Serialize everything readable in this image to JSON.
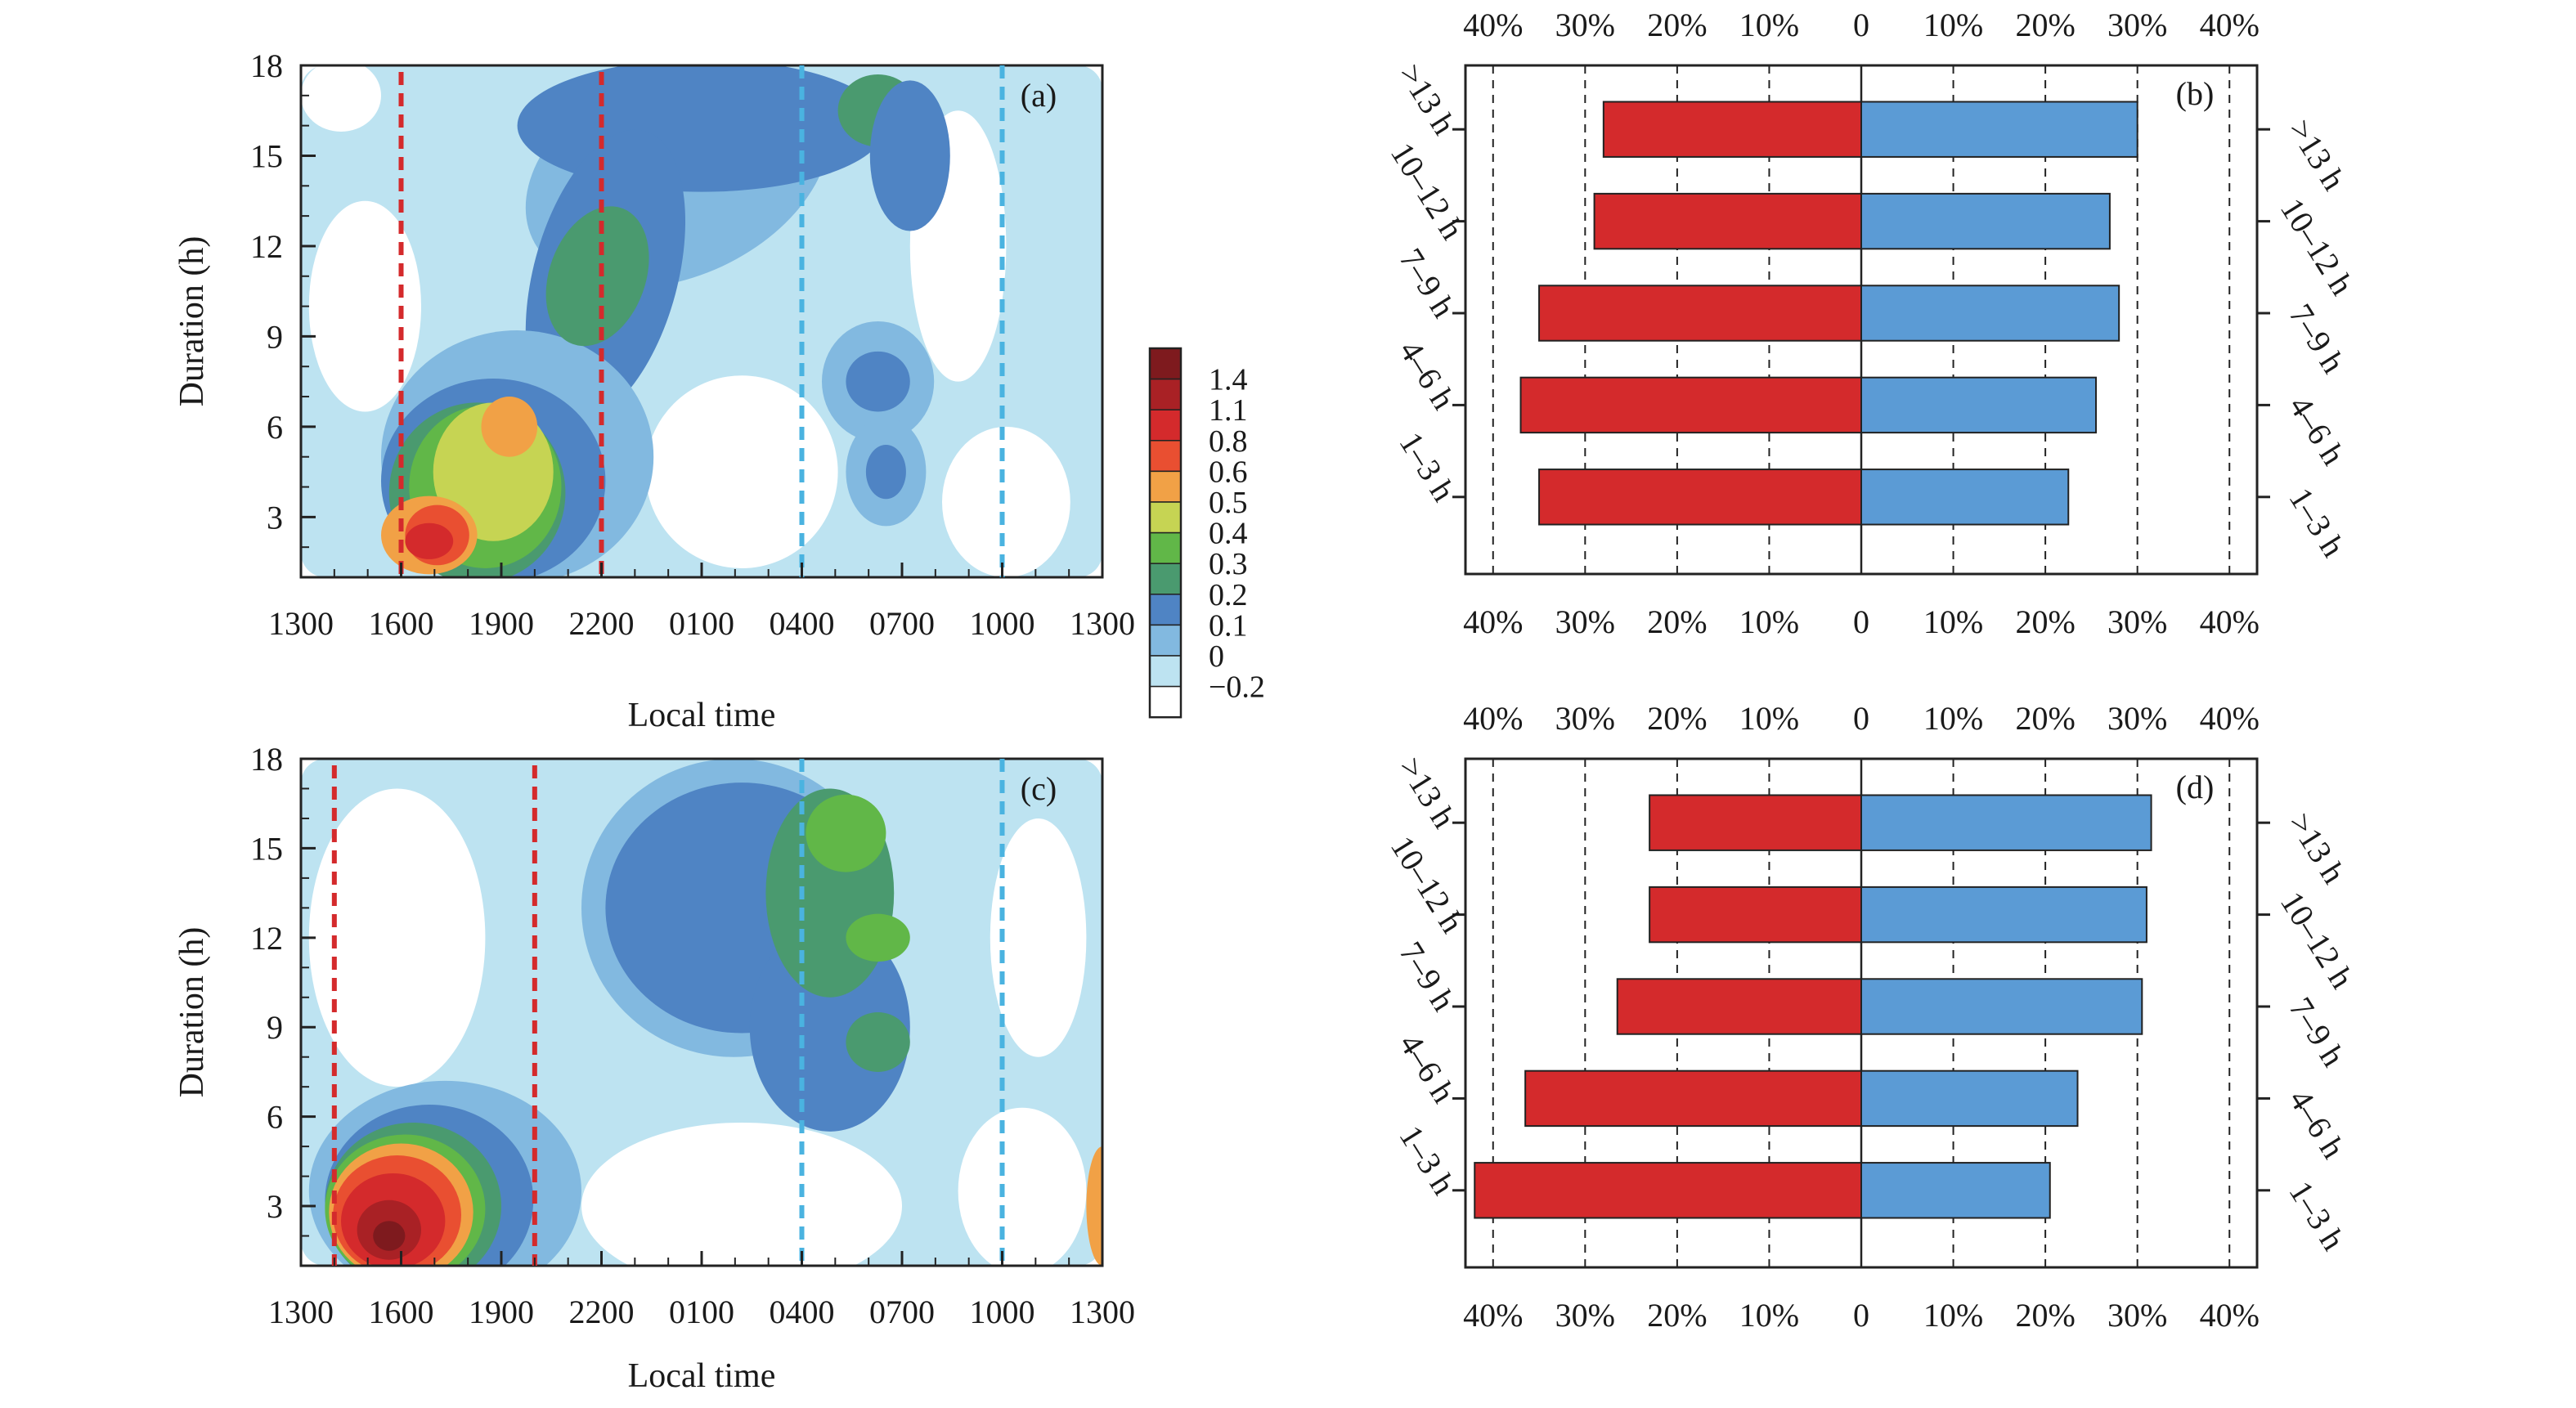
{
  "colorbar": {
    "levels": [
      "1.4",
      "1.1",
      "0.8",
      "0.6",
      "0.5",
      "0.4",
      "0.3",
      "0.2",
      "0.1",
      "0",
      "−0.2"
    ],
    "colors": [
      "#7e1a1e",
      "#a92125",
      "#d42a2c",
      "#e94f31",
      "#f1a146",
      "#c6d453",
      "#61b748",
      "#4a9a6f",
      "#4f84c4",
      "#82b9e0",
      "#bde3f1",
      "#ffffff"
    ]
  },
  "chart_data": [
    {
      "panel": "(a)",
      "type": "heatmap",
      "xlabel": "Local time",
      "ylabel": "Duration (h)",
      "xticks": [
        "1300",
        "1600",
        "1900",
        "2200",
        "0100",
        "0400",
        "0700",
        "1000",
        "1300"
      ],
      "yticks": [
        "3",
        "6",
        "9",
        "12",
        "15",
        "18"
      ],
      "ylim": [
        1,
        18
      ],
      "red_dashed_at": [
        "1600",
        "2200"
      ],
      "blue_dashed_at": [
        "0400",
        "1000"
      ],
      "blobs": [
        {
          "x": 1900,
          "y": 6,
          "value": 0.4
        },
        {
          "x": 1800,
          "y": 3,
          "value": 0.8
        },
        {
          "x": 2000,
          "y": 8,
          "value": 0.3
        },
        {
          "x": 2200,
          "y": 11,
          "value": 0.2
        },
        {
          "x": 600,
          "y": 8,
          "value": 0.1
        },
        {
          "x": 700,
          "y": 4.5,
          "value": 0.1
        }
      ]
    },
    {
      "panel": "(b)",
      "type": "bar",
      "orientation": "horizontal-diverging",
      "categories": [
        "1–3 h",
        "4–6 h",
        "7–9 h",
        "10–12 h",
        ">13 h"
      ],
      "series": [
        {
          "name": "left (red)",
          "color": "#d42a2c",
          "values": [
            35,
            37,
            35,
            29,
            28
          ]
        },
        {
          "name": "right (blue)",
          "color": "#5b9bd5",
          "values": [
            22.5,
            25.5,
            28,
            27,
            30
          ]
        }
      ],
      "xticks": [
        "40%",
        "30%",
        "20%",
        "10%",
        "0",
        "10%",
        "20%",
        "30%",
        "40%"
      ],
      "xlim": [
        -43,
        43
      ]
    },
    {
      "panel": "(c)",
      "type": "heatmap",
      "xlabel": "Local time",
      "ylabel": "Duration (h)",
      "xticks": [
        "1300",
        "1600",
        "1900",
        "2200",
        "0100",
        "0400",
        "0700",
        "1000",
        "1300"
      ],
      "yticks": [
        "3",
        "6",
        "9",
        "12",
        "15",
        "18"
      ],
      "ylim": [
        1,
        18
      ],
      "red_dashed_at": [
        "1400",
        "2000"
      ],
      "blue_dashed_at": [
        "0400",
        "1000"
      ],
      "blobs": [
        {
          "x": 1630,
          "y": 2.5,
          "value": 1.4
        },
        {
          "x": 1600,
          "y": 3,
          "value": 0.8
        },
        {
          "x": 400,
          "y": 13,
          "value": 0.3
        },
        {
          "x": 600,
          "y": 9,
          "value": 0.2
        }
      ]
    },
    {
      "panel": "(d)",
      "type": "bar",
      "orientation": "horizontal-diverging",
      "categories": [
        "1–3 h",
        "4–6 h",
        "7–9 h",
        "10–12 h",
        ">13 h"
      ],
      "series": [
        {
          "name": "left (red)",
          "color": "#d42a2c",
          "values": [
            42,
            36.5,
            26.5,
            23,
            23
          ]
        },
        {
          "name": "right (blue)",
          "color": "#5b9bd5",
          "values": [
            20.5,
            23.5,
            30.5,
            31,
            31.5
          ]
        }
      ],
      "xticks": [
        "40%",
        "30%",
        "20%",
        "10%",
        "0",
        "10%",
        "20%",
        "30%",
        "40%"
      ],
      "xlim": [
        -43,
        43
      ]
    }
  ]
}
